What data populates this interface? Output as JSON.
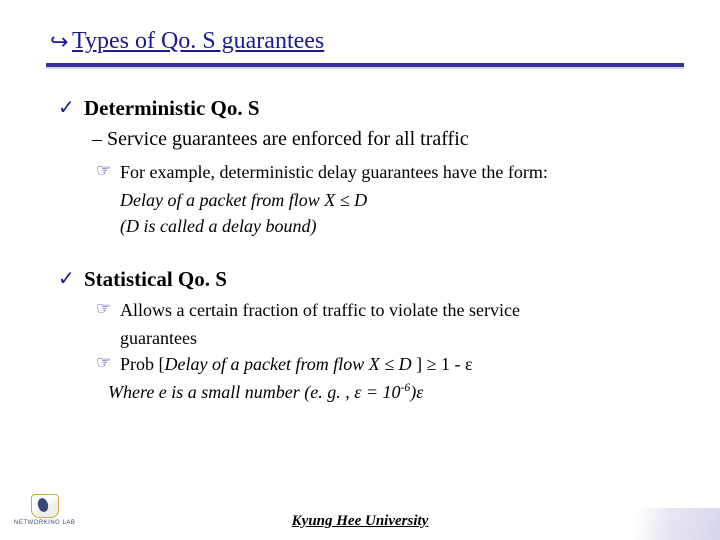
{
  "colors": {
    "accent": "#1a1a8f",
    "rule": "#333399",
    "text": "#000000",
    "background": "#ffffff"
  },
  "title": {
    "bullet": "↪",
    "text": "Types of Qo. S guarantees"
  },
  "sections": [
    {
      "check": "✓",
      "heading": "Deterministic Qo. S",
      "sub": "– Service guarantees are enforced for all traffic",
      "points": [
        {
          "finger": "☞",
          "text": "For example, deterministic delay guarantees have the form:",
          "cont": [
            "Delay of a packet from flow X ≤ D",
            "(D is called a delay bound)"
          ],
          "cont_italic": true
        }
      ]
    },
    {
      "check": "✓",
      "heading": "Statistical Qo. S",
      "sub": "",
      "points": [
        {
          "finger": "☞",
          "text": "Allows a certain fraction of traffic to violate the service",
          "cont": [
            "guarantees"
          ],
          "cont_italic": false
        },
        {
          "finger": "☞",
          "text_html": " Prob [<span class=\"ital\">Delay of a packet from flow X ≤ D </span> ] ≥ 1 - ε",
          "where_html": "Where e is a small number (e. g. , ε = 10<sup>-6</sup>)ε"
        }
      ]
    }
  ],
  "footer": {
    "university": "Kyung Hee University",
    "lab": "NETWORKING LAB"
  }
}
